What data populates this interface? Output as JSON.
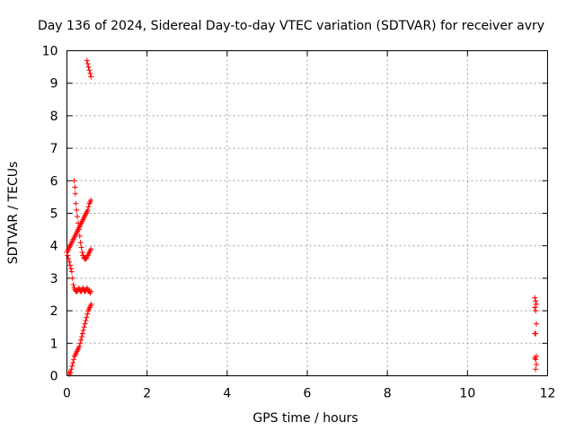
{
  "chart_data": {
    "type": "scatter",
    "title": "Day 136 of 2024, Sidereal Day-to-day VTEC variation (SDTVAR) for receiver avry",
    "xlabel": "GPS time / hours",
    "ylabel": "SDTVAR / TECUs",
    "xlim": [
      0,
      12
    ],
    "ylim": [
      0,
      10
    ],
    "xticks": [
      "0",
      "2",
      "4",
      "6",
      "8",
      "10",
      "12"
    ],
    "yticks": [
      "0",
      "1",
      "2",
      "3",
      "4",
      "5",
      "6",
      "7",
      "8",
      "9",
      "10"
    ],
    "grid": true,
    "marker": "plus",
    "color": "#ff0000",
    "series": [
      {
        "x": [
          0.0,
          0.02,
          0.04,
          0.06,
          0.08,
          0.1,
          0.12,
          0.14,
          0.16,
          0.18,
          0.2,
          0.22,
          0.24,
          0.26,
          0.28,
          0.3,
          0.32,
          0.34,
          0.36,
          0.38,
          0.4,
          0.42,
          0.44,
          0.46,
          0.48,
          0.5,
          0.52,
          0.54,
          0.56,
          0.58,
          0.6,
          0.02,
          0.04,
          0.06,
          0.08,
          0.1,
          0.12,
          0.14,
          0.16,
          0.18,
          0.2,
          0.22,
          0.24,
          0.26,
          0.28,
          0.3,
          0.32,
          0.34,
          0.36,
          0.38,
          0.4,
          0.42,
          0.44,
          0.46,
          0.48,
          0.5,
          0.52,
          0.54,
          0.56,
          0.58,
          0.6,
          0.05,
          0.07,
          0.09,
          0.11,
          0.13,
          0.15,
          0.17,
          0.19,
          0.21,
          0.23,
          0.25,
          0.27,
          0.29,
          0.31,
          0.33,
          0.35,
          0.37,
          0.39,
          0.41,
          0.43,
          0.45,
          0.47,
          0.49,
          0.51,
          0.53,
          0.55,
          0.57,
          0.59,
          0.61,
          0.18,
          0.2,
          0.21,
          0.22,
          0.24,
          0.26,
          0.28,
          0.3,
          0.32,
          0.34,
          0.36,
          0.38,
          0.4,
          0.42,
          0.44,
          0.46,
          0.48,
          0.5,
          0.52,
          0.54,
          0.56,
          0.58,
          0.6,
          0.5,
          0.52,
          0.54,
          0.56,
          0.58,
          0.6,
          11.68,
          11.7,
          11.72,
          11.68,
          11.7,
          11.72,
          11.7,
          11.68,
          11.7,
          11.72,
          11.68,
          11.7,
          11.72,
          11.7
        ],
        "y": [
          3.8,
          3.85,
          3.9,
          3.95,
          4.0,
          4.05,
          4.1,
          4.15,
          4.2,
          4.25,
          4.3,
          4.35,
          4.4,
          4.45,
          4.5,
          4.55,
          4.6,
          4.65,
          4.7,
          4.75,
          4.8,
          4.85,
          4.9,
          4.95,
          5.0,
          5.05,
          5.1,
          5.2,
          5.3,
          5.35,
          5.4,
          3.7,
          3.6,
          3.5,
          3.4,
          3.3,
          3.2,
          3.0,
          2.8,
          2.7,
          2.65,
          2.6,
          2.6,
          2.6,
          2.65,
          2.7,
          2.65,
          2.6,
          2.6,
          2.65,
          2.7,
          2.65,
          2.6,
          2.6,
          2.65,
          2.7,
          2.65,
          2.6,
          2.6,
          2.55,
          2.6,
          0.1,
          0.05,
          0.1,
          0.2,
          0.3,
          0.4,
          0.5,
          0.6,
          0.65,
          0.7,
          0.75,
          0.8,
          0.85,
          0.9,
          1.0,
          1.1,
          1.2,
          1.3,
          1.4,
          1.5,
          1.6,
          1.7,
          1.8,
          1.9,
          2.0,
          2.05,
          2.1,
          2.15,
          2.2,
          6.0,
          5.8,
          5.6,
          5.3,
          5.1,
          4.9,
          4.7,
          4.5,
          4.3,
          4.1,
          3.95,
          3.8,
          3.7,
          3.65,
          3.6,
          3.6,
          3.6,
          3.65,
          3.7,
          3.75,
          3.8,
          3.85,
          3.9,
          9.7,
          9.6,
          9.5,
          9.4,
          9.3,
          9.2,
          2.4,
          2.3,
          2.2,
          2.1,
          2.0,
          1.6,
          1.3,
          1.3,
          1.3,
          0.6,
          0.55,
          0.5,
          0.35,
          0.2
        ]
      }
    ]
  }
}
